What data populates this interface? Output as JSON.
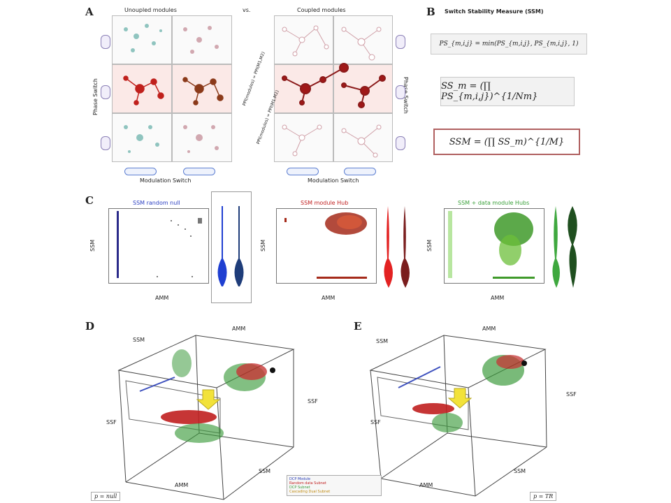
{
  "panels": {
    "A": {
      "letter": "A",
      "left_title": "Unoupled modules",
      "right_title": "Coupled modules",
      "vs_label": "vs.",
      "y_axis_label": "Phase Switch",
      "x_axis_label": "Modulation Switch",
      "coupling_label_left": "PPI(modules) = PPI(M1,M2)",
      "coupling_label_right": "PPI(modules) = PPI(M1,M2)",
      "colors": {
        "teal": "#7fb7b3",
        "pink": "#c9a0a8",
        "red": "#c0201c",
        "brown": "#8b3a1a"
      }
    },
    "B": {
      "letter": "B",
      "title": "Switch Stability Measure (SSM)",
      "formula_1": "PS_{m,i,j} = min(PS_{m,i,j}, PS_{m,i,j}, 1)",
      "formula_2": "SS_m = (∏ PS_{m,i,j})^{1/Nm}",
      "formula_3": "SSM = (∏ SS_m)^{1/M}"
    },
    "C": {
      "letter": "C",
      "plots": [
        {
          "title": "SSM random null",
          "title_color": "#2b3fc2",
          "x_label": "AMM",
          "y_label": "SSM",
          "point_color": "#2a2a8a",
          "violin_colors": [
            "#1f3fd1",
            "#1f3d7a"
          ]
        },
        {
          "title": "SSM module Hub",
          "title_color": "#c02020",
          "x_label": "AMM",
          "y_label": "SSM",
          "point_color": "#a52a1a",
          "violin_colors": [
            "#e32222",
            "#7a1d1d"
          ]
        },
        {
          "title": "SSM + data module Hubs",
          "title_color": "#3aa03a",
          "x_label": "AMM",
          "y_label": "SSM",
          "point_color": "#3f9a2a",
          "violin_colors": [
            "#3fa83f",
            "#1f4f1f"
          ]
        }
      ]
    },
    "D": {
      "letter": "D",
      "axis_top": "AMM",
      "axis_left_top": "SSM",
      "axis_right": "SSF",
      "axis_left": "SSF",
      "axis_bottom_left": "AMM",
      "axis_bottom_right": "SSM",
      "corner_tag": "p = null"
    },
    "E": {
      "letter": "E",
      "axis_top": "AMM",
      "axis_left_top": "SSM",
      "axis_right": "SSF",
      "axis_left": "SSF",
      "axis_bottom_left": "AMM",
      "axis_bottom_right": "SSM",
      "corner_tag": "p = TR"
    },
    "legend": {
      "items": [
        "DCP Module",
        "Random data Subnet",
        "DCP Subnet",
        "Cascading Dual Subnet"
      ],
      "colors": [
        "#2a3fb8",
        "#c02020",
        "#3a9a3a",
        "#e0a020"
      ]
    },
    "arrow_color": "#f2e23a"
  }
}
